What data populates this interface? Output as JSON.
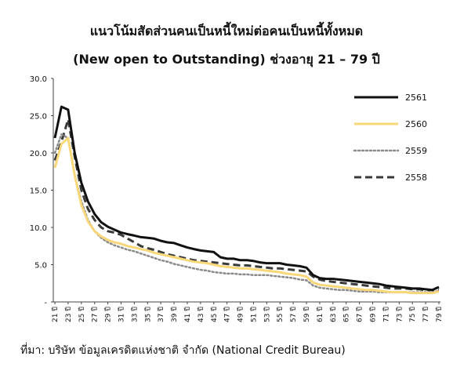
{
  "chart_data": {
    "type": "line",
    "title": "แนวโน้มสัดส่วนคนเป็นหนี้ใหม่ต่อคนเป็นหนี้ทั้งหมด",
    "subtitle": "(New open to Outstanding) ช่วงอายุ 21 – 79 ปี",
    "xlabel": "",
    "ylabel": "",
    "ylim": [
      0,
      30
    ],
    "yticks": [
      "30.0",
      "25.0",
      "20.0",
      "15.0",
      "10.0",
      "5.0",
      "-"
    ],
    "x": [
      21,
      22,
      23,
      24,
      25,
      26,
      27,
      28,
      29,
      30,
      31,
      32,
      33,
      34,
      35,
      36,
      37,
      38,
      39,
      40,
      41,
      42,
      43,
      44,
      45,
      46,
      47,
      48,
      49,
      50,
      51,
      52,
      53,
      54,
      55,
      56,
      57,
      58,
      59,
      60,
      61,
      62,
      63,
      64,
      65,
      66,
      67,
      68,
      69,
      70,
      71,
      72,
      73,
      74,
      75,
      76,
      77,
      78,
      79
    ],
    "x_tick_labels": [
      "21 ปี",
      "23 ปี",
      "25 ปี",
      "27 ปี",
      "29 ปี",
      "31 ปี",
      "33 ปี",
      "35 ปี",
      "37 ปี",
      "39 ปี",
      "41 ปี",
      "43 ปี",
      "45 ปี",
      "47 ปี",
      "49 ปี",
      "51 ปี",
      "53 ปี",
      "55 ปี",
      "57 ปี",
      "59 ปี",
      "61 ปี",
      "63 ปี",
      "65 ปี",
      "67 ปี",
      "69 ปี",
      "71 ปี",
      "73 ปี",
      "75 ปี",
      "77 ปี",
      "79 ปี"
    ],
    "legend_position": "right",
    "series": [
      {
        "name": "2561",
        "color": "#111111",
        "style": "solid",
        "values": [
          22.0,
          26.2,
          25.8,
          20.0,
          16.0,
          13.5,
          11.8,
          10.7,
          10.1,
          9.7,
          9.3,
          9.1,
          8.9,
          8.7,
          8.6,
          8.5,
          8.2,
          8.0,
          7.9,
          7.6,
          7.3,
          7.1,
          6.9,
          6.8,
          6.7,
          6.0,
          5.8,
          5.8,
          5.6,
          5.6,
          5.5,
          5.3,
          5.2,
          5.2,
          5.2,
          5.0,
          4.9,
          4.8,
          4.6,
          3.6,
          3.2,
          3.1,
          3.1,
          3.0,
          2.9,
          2.8,
          2.7,
          2.6,
          2.5,
          2.4,
          2.2,
          2.1,
          2.0,
          1.9,
          1.8,
          1.8,
          1.7,
          1.6,
          2.0
        ]
      },
      {
        "name": "2560",
        "color": "#f8d77a",
        "style": "solid",
        "values": [
          18.0,
          21.2,
          22.0,
          17.0,
          13.0,
          10.8,
          9.5,
          8.8,
          8.3,
          8.0,
          7.8,
          7.5,
          7.3,
          7.1,
          6.9,
          6.6,
          6.4,
          6.2,
          6.0,
          5.8,
          5.6,
          5.4,
          5.3,
          5.2,
          5.0,
          4.8,
          4.7,
          4.6,
          4.5,
          4.5,
          4.4,
          4.3,
          4.2,
          4.1,
          4.0,
          3.8,
          3.7,
          3.6,
          3.4,
          2.6,
          2.3,
          2.2,
          2.1,
          2.0,
          1.9,
          1.8,
          1.7,
          1.6,
          1.6,
          1.5,
          1.4,
          1.3,
          1.3,
          1.3,
          1.2,
          1.2,
          1.2,
          1.2,
          1.4
        ]
      },
      {
        "name": "2559",
        "color": "#8a8a8a",
        "style": "dotted",
        "values": [
          20.0,
          22.5,
          22.0,
          17.0,
          13.5,
          11.0,
          9.5,
          8.6,
          8.0,
          7.6,
          7.3,
          7.0,
          6.8,
          6.5,
          6.2,
          5.9,
          5.6,
          5.4,
          5.1,
          4.9,
          4.7,
          4.5,
          4.3,
          4.2,
          4.0,
          3.9,
          3.8,
          3.8,
          3.7,
          3.7,
          3.6,
          3.6,
          3.6,
          3.5,
          3.4,
          3.3,
          3.2,
          3.0,
          2.9,
          2.2,
          1.9,
          1.8,
          1.7,
          1.6,
          1.6,
          1.5,
          1.4,
          1.4,
          1.4,
          1.3,
          1.3,
          1.3,
          1.3,
          1.3,
          1.3,
          1.3,
          1.3,
          1.3,
          1.5
        ]
      },
      {
        "name": "2558",
        "color": "#3a3a3a",
        "style": "dashed",
        "values": [
          19.0,
          21.5,
          24.5,
          19.5,
          15.0,
          12.5,
          11.0,
          10.0,
          9.5,
          9.3,
          9.0,
          8.5,
          8.0,
          7.5,
          7.2,
          7.0,
          6.7,
          6.4,
          6.2,
          6.0,
          5.8,
          5.6,
          5.5,
          5.4,
          5.3,
          5.2,
          5.1,
          5.0,
          4.9,
          4.9,
          4.8,
          4.7,
          4.6,
          4.5,
          4.5,
          4.4,
          4.3,
          4.2,
          4.1,
          3.4,
          3.0,
          2.8,
          2.7,
          2.6,
          2.5,
          2.4,
          2.3,
          2.2,
          2.1,
          2.0,
          1.9,
          1.8,
          1.8,
          1.8,
          1.7,
          1.7,
          1.6,
          1.6,
          1.6
        ]
      }
    ]
  },
  "source": "ที่มา: บริษัท ข้อมูลเครดิตแห่งชาติ จำกัด (National Credit Bureau)"
}
